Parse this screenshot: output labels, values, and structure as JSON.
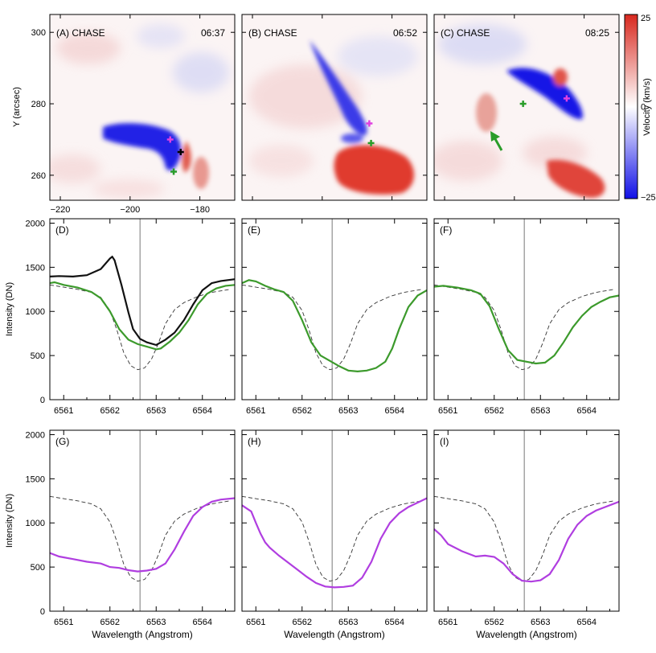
{
  "chart_data": {
    "type": "multi-panel",
    "maps": {
      "panels": [
        {
          "label": "(A) CHASE",
          "time": "06:37",
          "markers": [
            {
              "x": -188.5,
              "y": 270,
              "color": "#e040e0"
            },
            {
              "x": -185.5,
              "y": 266.5,
              "color": "#000000"
            },
            {
              "x": -187.5,
              "y": 261,
              "color": "#2a9d2a"
            }
          ]
        },
        {
          "label": "(B) CHASE",
          "time": "06:52",
          "markers": [
            {
              "x": -186.5,
              "y": 274.5,
              "color": "#e040e0"
            },
            {
              "x": -186.0,
              "y": 269,
              "color": "#2a9d2a"
            }
          ]
        },
        {
          "label": "(C) CHASE",
          "time": "08:25",
          "markers": [
            {
              "x": -185.0,
              "y": 281.5,
              "color": "#e040e0"
            },
            {
              "x": -197.5,
              "y": 280,
              "color": "#2a9d2a"
            }
          ]
        }
      ],
      "xlim": [
        -223,
        -170
      ],
      "ylim": [
        253,
        305
      ],
      "xticks": [
        -220,
        -200,
        -180
      ],
      "yticks": [
        260,
        280,
        300
      ],
      "ylabel": "Y (arcsec)",
      "colorbar": {
        "label": "Velocity (km/s)",
        "min": -25,
        "max": 25,
        "ticks": [
          25,
          0,
          -25
        ]
      }
    },
    "profiles": {
      "type": "line",
      "xlim": [
        6560.7,
        6564.7
      ],
      "ylim": [
        0,
        2050
      ],
      "xticks": [
        6561,
        6562,
        6563,
        6564
      ],
      "yticks": [
        0,
        500,
        1000,
        1500,
        2000
      ],
      "xlabel": "Wavelength (Angstrom)",
      "ylabel": "Intensity (DN)",
      "line_center": 6562.65,
      "reference": [
        [
          6560.7,
          1300
        ],
        [
          6561.0,
          1275
        ],
        [
          6561.3,
          1250
        ],
        [
          6561.6,
          1215
        ],
        [
          6561.8,
          1160
        ],
        [
          6562.0,
          1010
        ],
        [
          6562.15,
          790
        ],
        [
          6562.3,
          530
        ],
        [
          6562.45,
          385
        ],
        [
          6562.6,
          340
        ],
        [
          6562.75,
          360
        ],
        [
          6562.9,
          460
        ],
        [
          6563.05,
          640
        ],
        [
          6563.2,
          860
        ],
        [
          6563.4,
          1020
        ],
        [
          6563.6,
          1100
        ],
        [
          6563.9,
          1170
        ],
        [
          6564.2,
          1215
        ],
        [
          6564.6,
          1250
        ]
      ],
      "panels": [
        {
          "label": "(D)",
          "series": [
            {
              "color": "#111111",
              "points": [
                [
                  6560.7,
                  1395
                ],
                [
                  6560.9,
                  1400
                ],
                [
                  6561.2,
                  1395
                ],
                [
                  6561.5,
                  1410
                ],
                [
                  6561.8,
                  1480
                ],
                [
                  6562.0,
                  1600
                ],
                [
                  6562.05,
                  1620
                ],
                [
                  6562.1,
                  1580
                ],
                [
                  6562.25,
                  1300
                ],
                [
                  6562.4,
                  990
                ],
                [
                  6562.5,
                  800
                ],
                [
                  6562.65,
                  690
                ],
                [
                  6562.8,
                  650
                ],
                [
                  6563.0,
                  620
                ],
                [
                  6563.2,
                  680
                ],
                [
                  6563.4,
                  760
                ],
                [
                  6563.6,
                  900
                ],
                [
                  6563.8,
                  1080
                ],
                [
                  6564.0,
                  1240
                ],
                [
                  6564.2,
                  1320
                ],
                [
                  6564.4,
                  1345
                ],
                [
                  6564.7,
                  1365
                ]
              ]
            },
            {
              "color": "#3c9a2c",
              "points": [
                [
                  6560.7,
                  1320
                ],
                [
                  6560.8,
                  1330
                ],
                [
                  6561.0,
                  1300
                ],
                [
                  6561.3,
                  1270
                ],
                [
                  6561.6,
                  1220
                ],
                [
                  6561.8,
                  1150
                ],
                [
                  6562.0,
                  1000
                ],
                [
                  6562.2,
                  800
                ],
                [
                  6562.4,
                  680
                ],
                [
                  6562.6,
                  630
                ],
                [
                  6562.8,
                  600
                ],
                [
                  6563.0,
                  570
                ],
                [
                  6563.1,
                  580
                ],
                [
                  6563.3,
                  660
                ],
                [
                  6563.5,
                  760
                ],
                [
                  6563.7,
                  900
                ],
                [
                  6563.9,
                  1080
                ],
                [
                  6564.1,
                  1200
                ],
                [
                  6564.3,
                  1260
                ],
                [
                  6564.5,
                  1290
                ],
                [
                  6564.7,
                  1300
                ]
              ]
            }
          ]
        },
        {
          "label": "(E)",
          "series": [
            {
              "color": "#3c9a2c",
              "points": [
                [
                  6560.7,
                  1320
                ],
                [
                  6560.85,
                  1355
                ],
                [
                  6561.0,
                  1340
                ],
                [
                  6561.2,
                  1290
                ],
                [
                  6561.4,
                  1250
                ],
                [
                  6561.6,
                  1220
                ],
                [
                  6561.8,
                  1120
                ],
                [
                  6562.0,
                  900
                ],
                [
                  6562.2,
                  650
                ],
                [
                  6562.4,
                  500
                ],
                [
                  6562.6,
                  440
                ],
                [
                  6562.8,
                  380
                ],
                [
                  6563.0,
                  330
                ],
                [
                  6563.2,
                  320
                ],
                [
                  6563.4,
                  330
                ],
                [
                  6563.6,
                  360
                ],
                [
                  6563.8,
                  430
                ],
                [
                  6563.95,
                  580
                ],
                [
                  6564.1,
                  800
                ],
                [
                  6564.3,
                  1050
                ],
                [
                  6564.5,
                  1180
                ],
                [
                  6564.7,
                  1240
                ]
              ]
            }
          ]
        },
        {
          "label": "(F)",
          "series": [
            {
              "color": "#3c9a2c",
              "points": [
                [
                  6560.7,
                  1280
                ],
                [
                  6560.9,
                  1290
                ],
                [
                  6561.2,
                  1270
                ],
                [
                  6561.5,
                  1240
                ],
                [
                  6561.7,
                  1200
                ],
                [
                  6561.9,
                  1060
                ],
                [
                  6562.1,
                  800
                ],
                [
                  6562.3,
                  560
                ],
                [
                  6562.5,
                  450
                ],
                [
                  6562.7,
                  430
                ],
                [
                  6562.9,
                  410
                ],
                [
                  6563.1,
                  420
                ],
                [
                  6563.3,
                  500
                ],
                [
                  6563.5,
                  650
                ],
                [
                  6563.7,
                  820
                ],
                [
                  6563.9,
                  950
                ],
                [
                  6564.1,
                  1050
                ],
                [
                  6564.3,
                  1110
                ],
                [
                  6564.5,
                  1160
                ],
                [
                  6564.7,
                  1180
                ]
              ]
            }
          ]
        },
        {
          "label": "(G)",
          "series": [
            {
              "color": "#b03ee0",
              "points": [
                [
                  6560.7,
                  660
                ],
                [
                  6560.9,
                  620
                ],
                [
                  6561.2,
                  590
                ],
                [
                  6561.5,
                  560
                ],
                [
                  6561.8,
                  540
                ],
                [
                  6562.0,
                  500
                ],
                [
                  6562.2,
                  490
                ],
                [
                  6562.4,
                  465
                ],
                [
                  6562.6,
                  450
                ],
                [
                  6562.8,
                  460
                ],
                [
                  6563.0,
                  480
                ],
                [
                  6563.2,
                  540
                ],
                [
                  6563.4,
                  700
                ],
                [
                  6563.6,
                  900
                ],
                [
                  6563.8,
                  1080
                ],
                [
                  6564.0,
                  1180
                ],
                [
                  6564.2,
                  1240
                ],
                [
                  6564.4,
                  1265
                ],
                [
                  6564.7,
                  1280
                ]
              ]
            }
          ]
        },
        {
          "label": "(H)",
          "series": [
            {
              "color": "#b03ee0",
              "points": [
                [
                  6560.7,
                  1200
                ],
                [
                  6560.9,
                  1130
                ],
                [
                  6561.0,
                  1000
                ],
                [
                  6561.1,
                  880
                ],
                [
                  6561.2,
                  780
                ],
                [
                  6561.3,
                  720
                ],
                [
                  6561.5,
                  630
                ],
                [
                  6561.7,
                  550
                ],
                [
                  6561.9,
                  470
                ],
                [
                  6562.1,
                  390
                ],
                [
                  6562.3,
                  320
                ],
                [
                  6562.5,
                  280
                ],
                [
                  6562.7,
                  270
                ],
                [
                  6562.9,
                  275
                ],
                [
                  6563.1,
                  290
                ],
                [
                  6563.3,
                  380
                ],
                [
                  6563.5,
                  560
                ],
                [
                  6563.7,
                  820
                ],
                [
                  6563.9,
                  1000
                ],
                [
                  6564.1,
                  1110
                ],
                [
                  6564.3,
                  1180
                ],
                [
                  6564.5,
                  1230
                ],
                [
                  6564.7,
                  1280
                ]
              ]
            }
          ]
        },
        {
          "label": "(I)",
          "series": [
            {
              "color": "#b03ee0",
              "points": [
                [
                  6560.7,
                  930
                ],
                [
                  6560.85,
                  860
                ],
                [
                  6561.0,
                  760
                ],
                [
                  6561.3,
                  680
                ],
                [
                  6561.6,
                  620
                ],
                [
                  6561.8,
                  630
                ],
                [
                  6562.0,
                  615
                ],
                [
                  6562.2,
                  540
                ],
                [
                  6562.4,
                  420
                ],
                [
                  6562.6,
                  345
                ],
                [
                  6562.8,
                  335
                ],
                [
                  6563.0,
                  350
                ],
                [
                  6563.2,
                  420
                ],
                [
                  6563.4,
                  580
                ],
                [
                  6563.6,
                  820
                ],
                [
                  6563.8,
                  980
                ],
                [
                  6564.0,
                  1080
                ],
                [
                  6564.2,
                  1140
                ],
                [
                  6564.4,
                  1180
                ],
                [
                  6564.7,
                  1240
                ]
              ]
            }
          ]
        }
      ]
    }
  }
}
